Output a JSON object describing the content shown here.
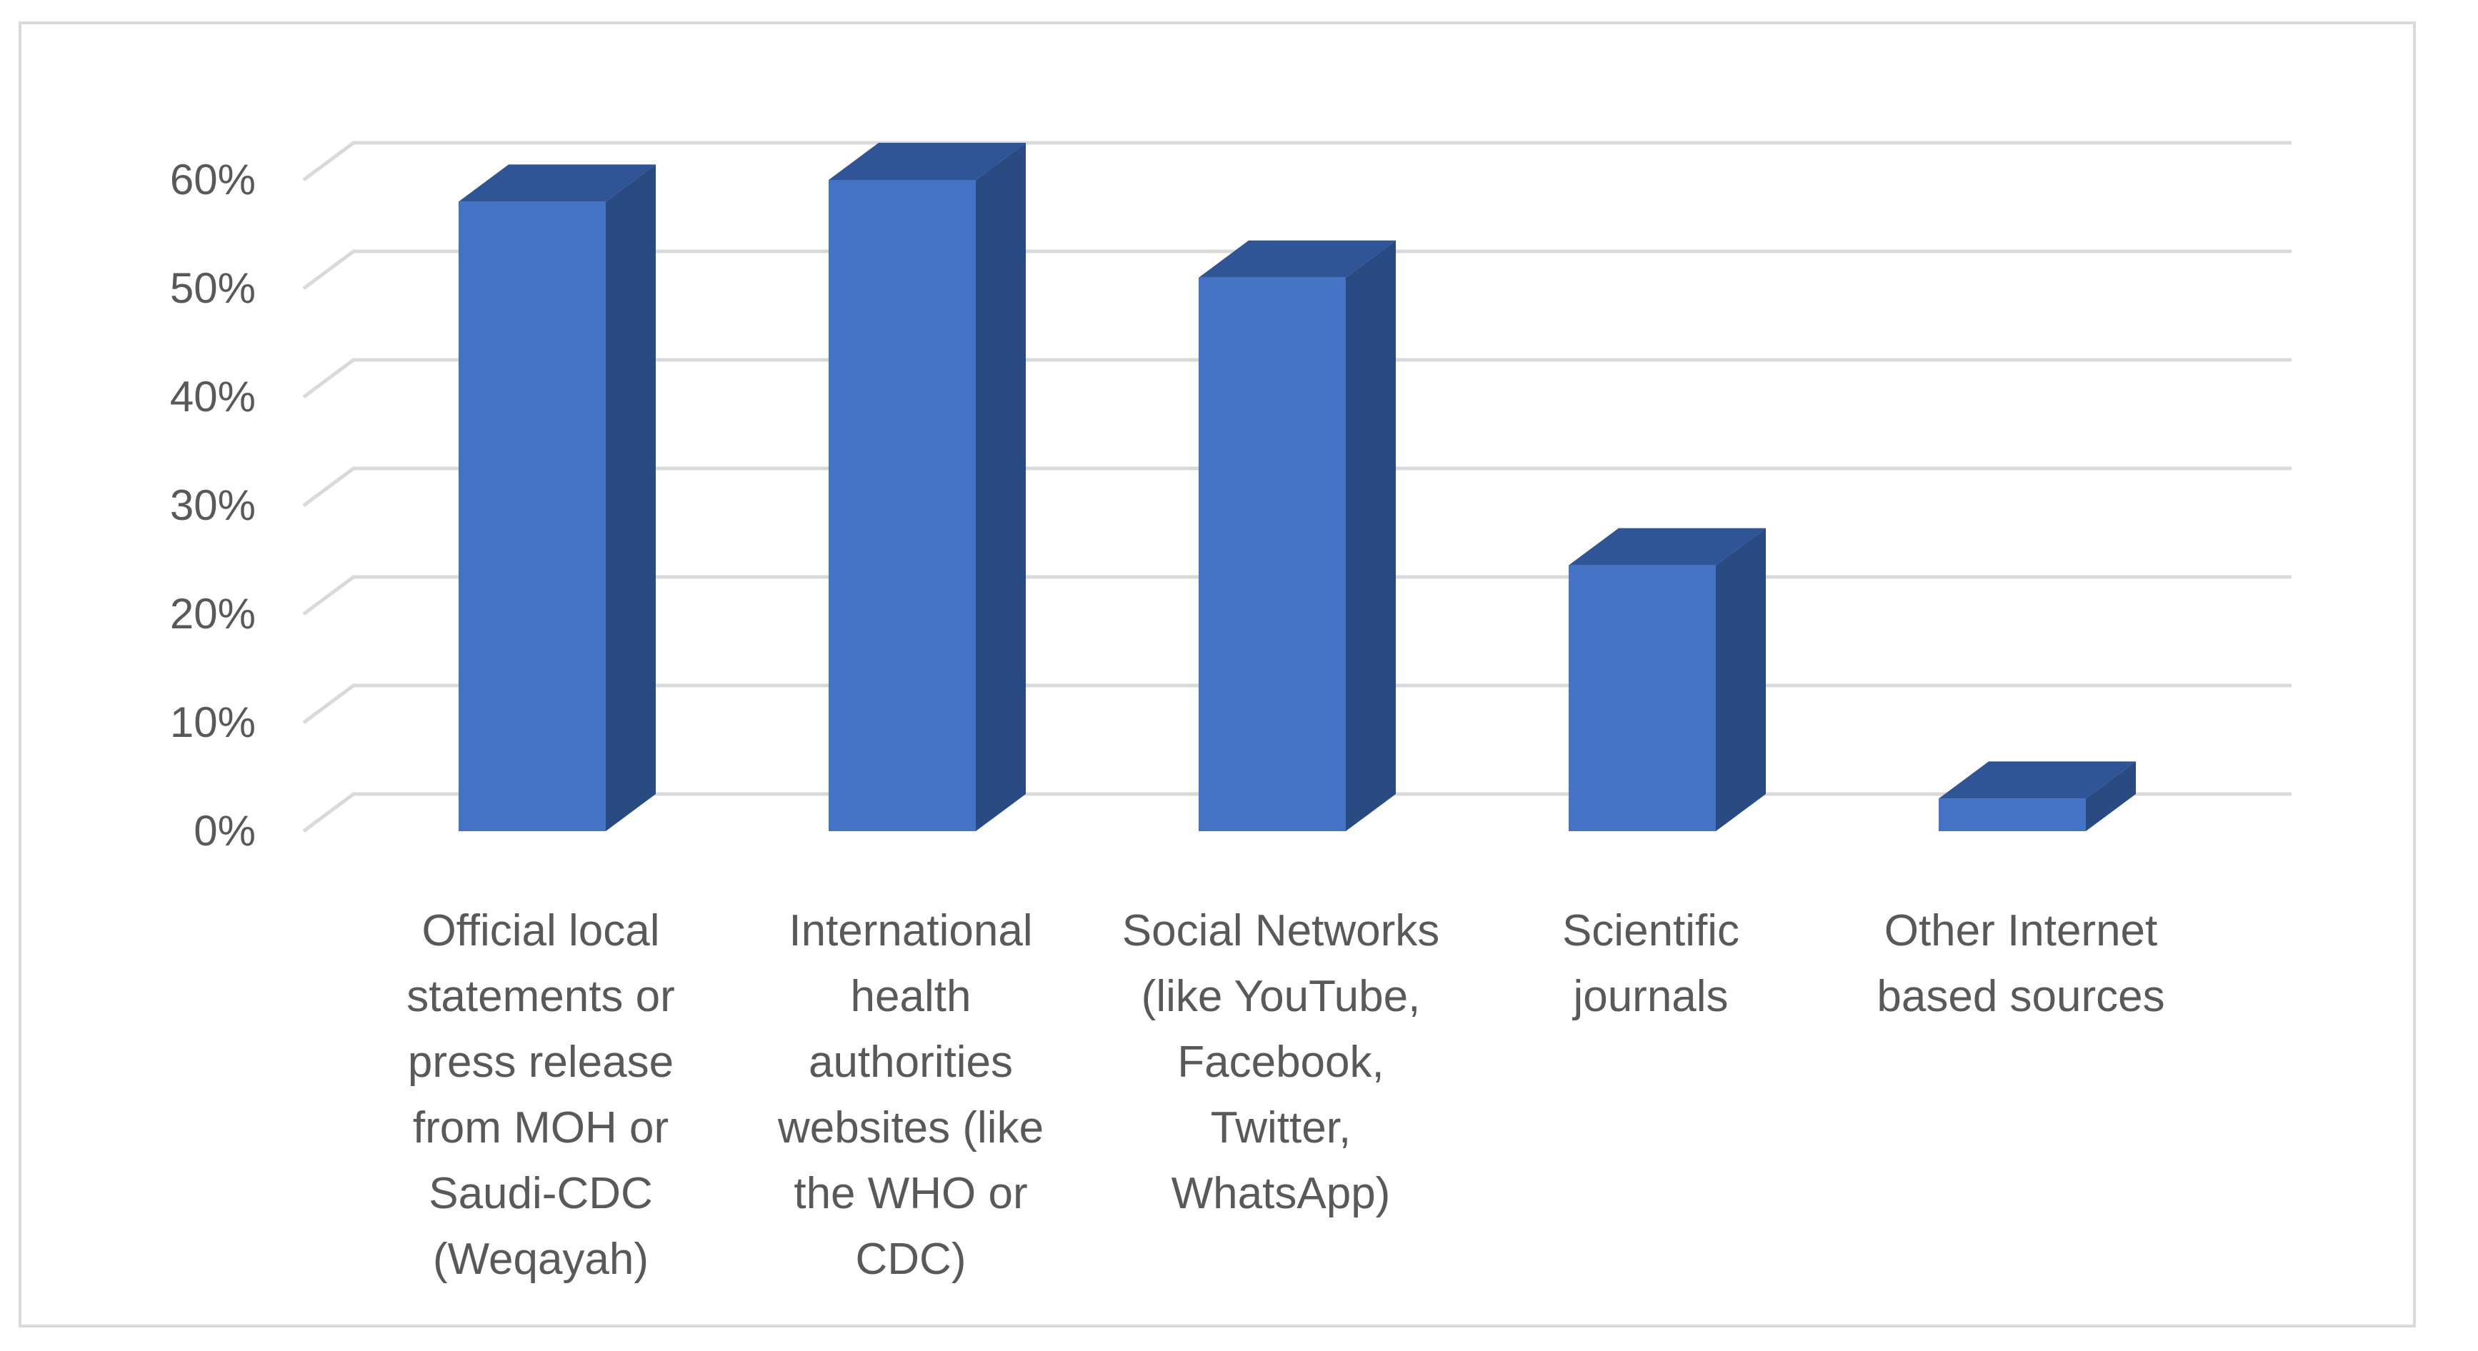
{
  "chart_data": {
    "type": "bar",
    "categories": [
      "Official local\nstatements or\npress release\nfrom MOH or\nSaudi-CDC\n(Weqayah)",
      "International\nhealth\nauthorities\nwebsites (like\nthe WHO or\nCDC)",
      "Social Networks\n(like YouTube,\nFacebook,\nTwitter,\nWhatsApp)",
      "Scientific\njournals",
      "Other Internet\nbased sources"
    ],
    "values": [
      58,
      60,
      51,
      24.5,
      3
    ],
    "ylim": [
      0,
      60
    ],
    "yticks": [
      "0%",
      "10%",
      "20%",
      "30%",
      "40%",
      "50%",
      "60%"
    ],
    "title": "",
    "xlabel": "",
    "ylabel": "",
    "grid": true,
    "colors": {
      "front": "#4472c4",
      "top": "#2f5597",
      "side": "#2a4a82",
      "grid": "#d9d9d9",
      "text": "#595959"
    }
  }
}
